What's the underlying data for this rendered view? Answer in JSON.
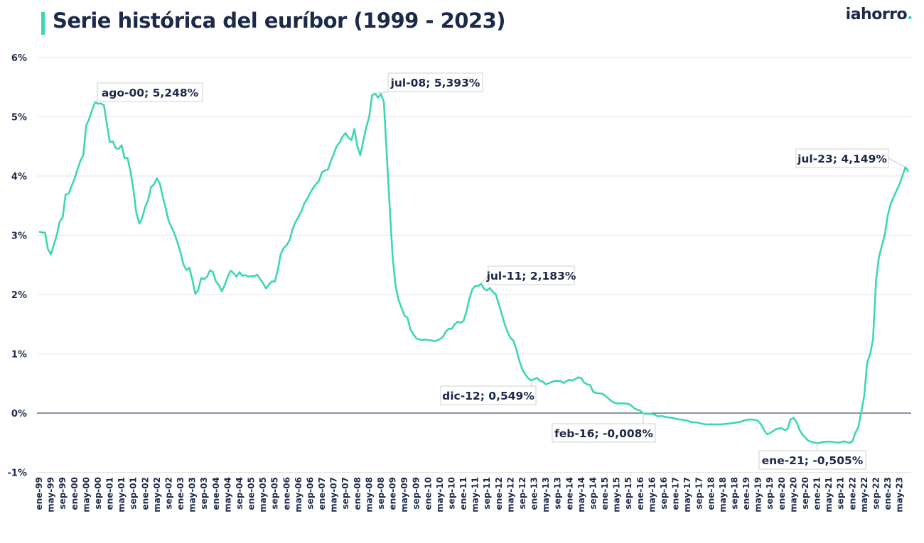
{
  "header": {
    "title": "Serie histórica del euríbor (1999 - 2023)",
    "logo_text": "iahorro",
    "logo_dot": "."
  },
  "colors": {
    "line": "#3dd6b5",
    "text": "#1b2a4a",
    "grid": "#e3e3e3",
    "zero_line": "#1b2a4a",
    "accent": "#3dd6b5"
  },
  "chart_data": {
    "type": "line",
    "title": "Serie histórica del euríbor (1999 - 2023)",
    "xlabel": "",
    "ylabel": "",
    "ylim": [
      -1,
      6
    ],
    "yticks": [
      -1,
      0,
      1,
      2,
      3,
      4,
      5,
      6
    ],
    "ytick_labels": [
      "-1%",
      "0%",
      "1%",
      "2%",
      "3%",
      "4%",
      "5%",
      "6%"
    ],
    "grid": true,
    "x_start": "ene-99",
    "x_end": "ago-23",
    "xtick_labels": [
      "ene-99",
      "may-99",
      "sep-99",
      "ene-00",
      "may-00",
      "sep-00",
      "ene-01",
      "may-01",
      "sep-01",
      "ene-02",
      "may-02",
      "sep-02",
      "ene-03",
      "may-03",
      "sep-03",
      "ene-04",
      "may-04",
      "sep-04",
      "ene-05",
      "may-05",
      "sep-05",
      "ene-06",
      "may-06",
      "sep-06",
      "ene-07",
      "may-07",
      "sep-07",
      "ene-08",
      "may-08",
      "sep-08",
      "ene-09",
      "may-09",
      "sep-09",
      "ene-10",
      "may-10",
      "sep-10",
      "ene-11",
      "may-11",
      "sep-11",
      "ene-12",
      "may-12",
      "sep-12",
      "ene-13",
      "may-13",
      "sep-13",
      "ene-14",
      "may-14",
      "sep-14",
      "ene-15",
      "may-15",
      "sep-15",
      "ene-16",
      "may-16",
      "sep-16",
      "ene-17",
      "may-17",
      "sep-17",
      "ene-18",
      "may-18",
      "sep-18",
      "ene-19",
      "may-19",
      "sep-19",
      "ene-20",
      "may-20",
      "sep-20",
      "ene-21",
      "may-21",
      "sep-21",
      "ene-22",
      "may-22",
      "sep-22",
      "ene-23",
      "may-23"
    ],
    "series": [
      {
        "values": [
          3.062,
          3.045,
          3.048,
          2.765,
          2.68,
          2.84,
          3.004,
          3.23,
          3.3,
          3.69,
          3.7,
          3.83,
          3.949,
          4.109,
          4.25,
          4.353,
          4.852,
          4.965,
          5.112,
          5.248,
          5.219,
          5.224,
          5.193,
          4.881,
          4.574,
          4.586,
          4.471,
          4.459,
          4.52,
          4.305,
          4.306,
          4.083,
          3.769,
          3.378,
          3.196,
          3.298,
          3.48,
          3.593,
          3.816,
          3.857,
          3.962,
          3.869,
          3.647,
          3.444,
          3.238,
          3.129,
          3.019,
          2.873,
          2.709,
          2.503,
          2.415,
          2.451,
          2.253,
          2.014,
          2.076,
          2.279,
          2.258,
          2.303,
          2.41,
          2.381,
          2.218,
          2.163,
          2.055,
          2.163,
          2.297,
          2.404,
          2.362,
          2.302,
          2.377,
          2.316,
          2.328,
          2.301,
          2.312,
          2.31,
          2.335,
          2.265,
          2.193,
          2.103,
          2.168,
          2.223,
          2.22,
          2.414,
          2.684,
          2.783,
          2.833,
          2.914,
          3.105,
          3.221,
          3.308,
          3.401,
          3.539,
          3.615,
          3.715,
          3.799,
          3.864,
          3.921,
          4.064,
          4.094,
          4.106,
          4.253,
          4.373,
          4.505,
          4.564,
          4.666,
          4.725,
          4.647,
          4.607,
          4.793,
          4.498,
          4.349,
          4.59,
          4.82,
          4.994,
          5.361,
          5.393,
          5.323,
          5.384,
          5.248,
          4.35,
          3.452,
          2.622,
          2.135,
          1.909,
          1.771,
          1.644,
          1.61,
          1.412,
          1.334,
          1.261,
          1.243,
          1.231,
          1.242,
          1.232,
          1.225,
          1.215,
          1.225,
          1.249,
          1.281,
          1.373,
          1.421,
          1.42,
          1.495,
          1.541,
          1.526,
          1.55,
          1.714,
          1.924,
          2.086,
          2.147,
          2.144,
          2.183,
          2.097,
          2.067,
          2.11,
          2.044,
          2.004,
          1.837,
          1.678,
          1.499,
          1.368,
          1.266,
          1.219,
          1.061,
          0.877,
          0.74,
          0.65,
          0.588,
          0.549,
          0.575,
          0.594,
          0.545,
          0.528,
          0.484,
          0.507,
          0.525,
          0.542,
          0.543,
          0.541,
          0.506,
          0.543,
          0.562,
          0.549,
          0.577,
          0.604,
          0.592,
          0.513,
          0.488,
          0.469,
          0.362,
          0.338,
          0.335,
          0.329,
          0.298,
          0.255,
          0.212,
          0.18,
          0.165,
          0.163,
          0.167,
          0.161,
          0.154,
          0.128,
          0.079,
          0.059,
          0.042,
          -0.008,
          -0.012,
          -0.01,
          -0.013,
          -0.028,
          -0.056,
          -0.048,
          -0.057,
          -0.069,
          -0.074,
          -0.08,
          -0.095,
          -0.106,
          -0.11,
          -0.119,
          -0.127,
          -0.149,
          -0.154,
          -0.156,
          -0.168,
          -0.18,
          -0.189,
          -0.19,
          -0.189,
          -0.191,
          -0.191,
          -0.19,
          -0.188,
          -0.181,
          -0.18,
          -0.169,
          -0.166,
          -0.154,
          -0.147,
          -0.129,
          -0.116,
          -0.108,
          -0.109,
          -0.112,
          -0.134,
          -0.19,
          -0.283,
          -0.356,
          -0.339,
          -0.304,
          -0.272,
          -0.261,
          -0.253,
          -0.288,
          -0.266,
          -0.108,
          -0.081,
          -0.147,
          -0.279,
          -0.359,
          -0.415,
          -0.466,
          -0.481,
          -0.497,
          -0.505,
          -0.501,
          -0.487,
          -0.484,
          -0.481,
          -0.484,
          -0.491,
          -0.498,
          -0.492,
          -0.477,
          -0.487,
          -0.502,
          -0.477,
          -0.335,
          -0.237,
          0.013,
          0.287,
          0.852,
          0.992,
          1.249,
          2.233,
          2.629,
          2.828,
          3.018,
          3.337,
          3.534,
          3.647,
          3.757,
          3.862,
          4.007,
          4.149,
          4.073
        ]
      }
    ],
    "annotations": [
      {
        "label": "ago-00; 5,248%",
        "month_index": 19,
        "value": 5.248
      },
      {
        "label": "jul-08; 5,393%",
        "month_index": 114,
        "value": 5.393
      },
      {
        "label": "jul-11; 2,183%",
        "month_index": 150,
        "value": 2.183
      },
      {
        "label": "dic-12; 0,549%",
        "month_index": 167,
        "value": 0.549
      },
      {
        "label": "feb-16; -0,008%",
        "month_index": 205,
        "value": -0.008
      },
      {
        "label": "ene-21; -0,505%",
        "month_index": 264,
        "value": -0.505
      },
      {
        "label": "jul-23; 4,149%",
        "month_index": 294,
        "value": 4.149
      }
    ]
  }
}
